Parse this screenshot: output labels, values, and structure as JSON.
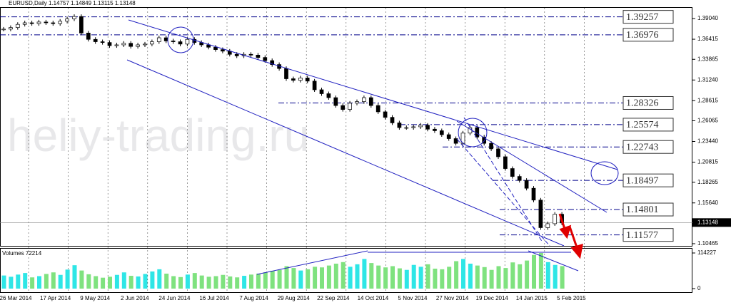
{
  "chart_data": {
    "type": "candlestick",
    "title": "EURUSD,Daily 1.14757 1.14849 1.13115 1.13148",
    "watermark": "heliy-trading.ru",
    "values": [
      1.377,
      1.379,
      1.383,
      1.385,
      1.384,
      1.386,
      1.385,
      1.384,
      1.387,
      1.39,
      1.393,
      1.372,
      1.364,
      1.361,
      1.36,
      1.356,
      1.357,
      1.359,
      1.355,
      1.357,
      1.358,
      1.361,
      1.366,
      1.362,
      1.361,
      1.358,
      1.364,
      1.36,
      1.357,
      1.354,
      1.351,
      1.349,
      1.345,
      1.343,
      1.345,
      1.344,
      1.341,
      1.337,
      1.332,
      1.327,
      1.314,
      1.312,
      1.315,
      1.311,
      1.3,
      1.295,
      1.29,
      1.28,
      1.275,
      1.283,
      1.285,
      1.29,
      1.28,
      1.272,
      1.265,
      1.258,
      1.252,
      1.252,
      1.253,
      1.255,
      1.25,
      1.248,
      1.243,
      1.238,
      1.232,
      1.245,
      1.252,
      1.24,
      1.232,
      1.225,
      1.215,
      1.2,
      1.19,
      1.185,
      1.175,
      1.16,
      1.125,
      1.13,
      1.142,
      1.131
    ],
    "ylim": [
      1.1019,
      1.4049
    ],
    "yticks": [
      {
        "value": 1.3904,
        "label": "1.39040"
      },
      {
        "value": 1.36415,
        "label": "1.36415"
      },
      {
        "value": 1.33865,
        "label": "1.33865"
      },
      {
        "value": 1.3124,
        "label": "1.31240"
      },
      {
        "value": 1.28615,
        "label": "1.28615"
      },
      {
        "value": 1.26065,
        "label": "1.26065"
      },
      {
        "value": 1.2344,
        "label": "1.23440"
      },
      {
        "value": 1.20815,
        "label": "1.20815"
      },
      {
        "value": 1.18265,
        "label": "1.18265"
      },
      {
        "value": 1.1564,
        "label": "1.15640"
      },
      {
        "value": 1.10465,
        "label": "1.10465"
      }
    ],
    "levels": [
      1.39257,
      1.36976,
      1.28326,
      1.25574,
      1.22743,
      1.18497,
      1.14801,
      1.11577
    ],
    "last_price": 1.13148,
    "date_labels": [
      "26 Mar 2014",
      "17 Apr 2014",
      "9 May 2014",
      "2 Jun 2014",
      "24 Jun 2014",
      "16 Jul 2014",
      "7 Aug 2014",
      "29 Aug 2014",
      "22 Sep 2014",
      "14 Oct 2014",
      "5 Nov 2014",
      "27 Nov 2014",
      "19 Dec 2014",
      "14 Jan 2015",
      "5 Feb 2015"
    ],
    "volume": {
      "title": "Volumes 72214",
      "values": [
        42000,
        38000,
        45000,
        50000,
        36000,
        40000,
        47000,
        52000,
        44000,
        61000,
        75000,
        58000,
        46000,
        40000,
        35000,
        38000,
        44000,
        52000,
        41000,
        39000,
        47000,
        55000,
        62000,
        48000,
        40000,
        37000,
        45000,
        50000,
        42000,
        38000,
        40000,
        44000,
        39000,
        36000,
        41000,
        45000,
        48000,
        52000,
        57000,
        60000,
        72000,
        66000,
        58000,
        62000,
        70000,
        68000,
        74000,
        80000,
        85000,
        70000,
        78000,
        95000,
        82000,
        74000,
        68000,
        72000,
        65000,
        60000,
        76000,
        70000,
        78000,
        64000,
        62000,
        70000,
        88000,
        95000,
        80000,
        74000,
        69000,
        60000,
        72000,
        66000,
        84000,
        78000,
        90000,
        108000,
        114227,
        85000,
        76000,
        72214
      ],
      "ylim": [
        0,
        114227
      ],
      "yticks": [
        114227,
        0
      ]
    }
  }
}
